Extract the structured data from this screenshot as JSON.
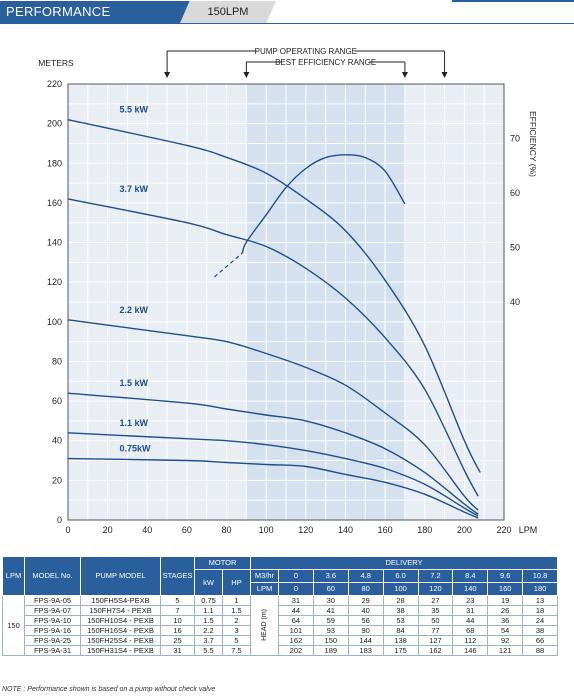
{
  "header": {
    "title": "PERFORMANCE",
    "subtitle": "150LPM"
  },
  "chart_data": {
    "type": "line",
    "xlabel": "LPM",
    "ylabel": "METERS",
    "y2label": "EFFICIENCY (%)",
    "xlim": [
      0,
      220
    ],
    "ylim": [
      0,
      220
    ],
    "y2lim": [
      0,
      80
    ],
    "x_ticks": [
      0,
      20,
      40,
      60,
      80,
      100,
      120,
      140,
      160,
      180,
      200,
      220
    ],
    "y_ticks": [
      0,
      20,
      40,
      60,
      80,
      100,
      120,
      140,
      160,
      180,
      200,
      220
    ],
    "y2_ticks": [
      40,
      50,
      60,
      70
    ],
    "grid": true,
    "operating_range": {
      "label": "PUMP OPERATING RANGE",
      "from": 50,
      "to": 190
    },
    "efficiency_range": {
      "label": "BEST EFFICIENCY RANGE",
      "from": 90,
      "to": 170
    },
    "series": [
      {
        "name": "5.5 kW",
        "x": [
          0,
          60,
          80,
          100,
          120,
          140,
          160,
          180,
          200,
          208
        ],
        "y": [
          202,
          189,
          183,
          175,
          162,
          146,
          121,
          88,
          40,
          24
        ]
      },
      {
        "name": "3.7 kW",
        "x": [
          0,
          60,
          80,
          100,
          120,
          140,
          160,
          180,
          200,
          207
        ],
        "y": [
          162,
          150,
          144,
          138,
          127,
          112,
          92,
          66,
          25,
          12
        ]
      },
      {
        "name": "2.2 kW",
        "x": [
          0,
          60,
          80,
          100,
          120,
          140,
          160,
          180,
          200,
          207
        ],
        "y": [
          101,
          93,
          90,
          84,
          77,
          68,
          54,
          38,
          12,
          5
        ]
      },
      {
        "name": "1.5 kW",
        "x": [
          0,
          60,
          80,
          100,
          120,
          140,
          160,
          180,
          200,
          207
        ],
        "y": [
          64,
          59,
          56,
          53,
          50,
          44,
          36,
          24,
          8,
          3
        ]
      },
      {
        "name": "1.1 kW",
        "x": [
          0,
          60,
          80,
          100,
          120,
          140,
          160,
          180,
          200,
          207
        ],
        "y": [
          44,
          41,
          40,
          38,
          35,
          31,
          26,
          18,
          6,
          2
        ]
      },
      {
        "name": "0.75kW",
        "x": [
          0,
          60,
          80,
          100,
          120,
          140,
          160,
          180,
          200,
          207
        ],
        "y": [
          31,
          30,
          29,
          28,
          27,
          23,
          19,
          13,
          4,
          1
        ]
      }
    ],
    "efficiency_curve": {
      "x": [
        88,
        90,
        100,
        110,
        120,
        130,
        140,
        150,
        160,
        170
      ],
      "y": [
        49,
        51,
        56,
        61,
        64.5,
        66.5,
        67,
        66.5,
        64,
        58
      ]
    }
  },
  "table": {
    "headers": {
      "lpm": "LPM",
      "model_no": "MODEL No.",
      "pump_model": "PUMP MODEL",
      "stages": "STAGES",
      "motor": "MOTOR",
      "kw": "kW",
      "hp": "HP",
      "delivery": "DELIVERY",
      "m3hr": "M3/hr",
      "lpm_row": "LPM",
      "head": "HEAD (m)"
    },
    "m3hr": [
      "0",
      "3.6",
      "4.8",
      "6.0",
      "7.2",
      "8.4",
      "9.6",
      "10.8"
    ],
    "lpm_vals": [
      "0",
      "60",
      "80",
      "100",
      "120",
      "140",
      "160",
      "180"
    ],
    "lpm_group": "150",
    "rows": [
      {
        "model": "FPS-9A-05",
        "pump": "150FH5S4-PEXB",
        "stages": "5",
        "kw": "0.75",
        "hp": "1",
        "head": [
          "31",
          "30",
          "29",
          "28",
          "27",
          "23",
          "19",
          "13"
        ]
      },
      {
        "model": "FPS-9A-07",
        "pump": "150FH7S4 - PEXB",
        "stages": "7",
        "kw": "1.1",
        "hp": "1.5",
        "head": [
          "44",
          "41",
          "40",
          "38",
          "35",
          "31",
          "26",
          "18"
        ]
      },
      {
        "model": "FPS-9A-10",
        "pump": "150FH10S4 - PEXB",
        "stages": "10",
        "kw": "1.5",
        "hp": "2",
        "head": [
          "64",
          "59",
          "56",
          "53",
          "50",
          "44",
          "36",
          "24"
        ]
      },
      {
        "model": "FPS-9A-16",
        "pump": "150FH16S4 - PEXB",
        "stages": "16",
        "kw": "2.2",
        "hp": "3",
        "head": [
          "101",
          "93",
          "90",
          "84",
          "77",
          "68",
          "54",
          "38"
        ]
      },
      {
        "model": "FPS-9A-25",
        "pump": "150FH25S4 - PEXB",
        "stages": "25",
        "kw": "3.7",
        "hp": "5",
        "head": [
          "162",
          "150",
          "144",
          "138",
          "127",
          "112",
          "92",
          "66"
        ]
      },
      {
        "model": "FPS-9A-31",
        "pump": "150FH31S4 - PEXB",
        "stages": "31",
        "kw": "5.5",
        "hp": "7.5",
        "head": [
          "202",
          "189",
          "183",
          "175",
          "162",
          "146",
          "121",
          "88"
        ]
      }
    ]
  },
  "note": "NOTE : Performance shown is based on a pump without check valve",
  "colors": {
    "brand": "#2a5f9e",
    "curve": "#1f4e8c",
    "band": "#d5e1ef"
  }
}
